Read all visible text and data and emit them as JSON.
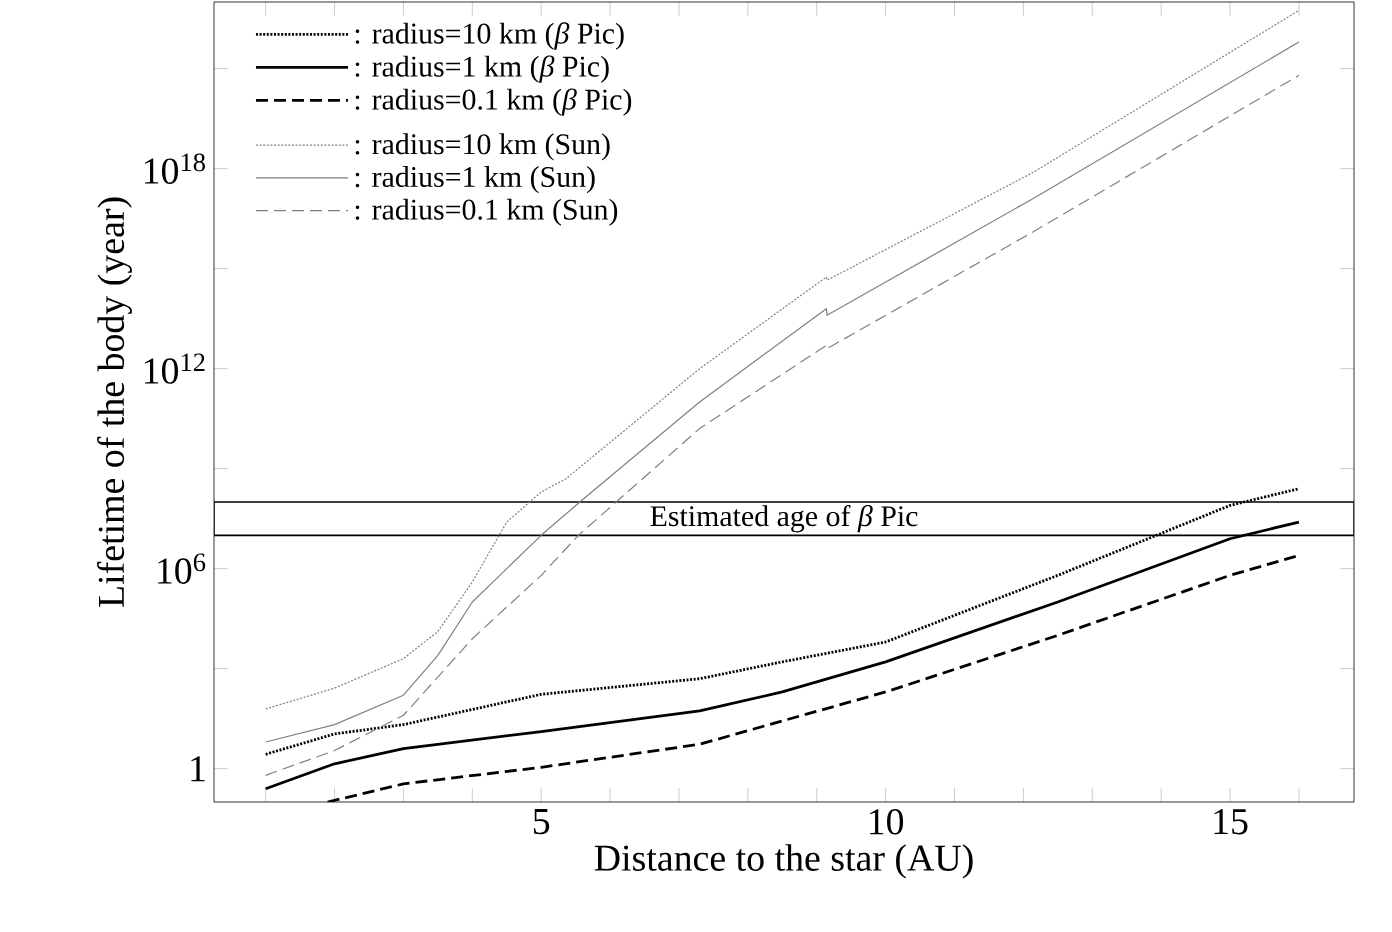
{
  "chart_data": {
    "type": "line",
    "xlabel": "Distance to the star (AU)",
    "ylabel": "Lifetime of the body (year)",
    "log": "y",
    "grid": false,
    "legend": "top left",
    "xlim": [
      0.25,
      16.8
    ],
    "ylim": [
      0.1,
      1e+23
    ],
    "xticks": [
      {
        "value": 1,
        "label": null
      },
      {
        "value": 2,
        "label": null
      },
      {
        "value": 3,
        "label": null
      },
      {
        "value": 4,
        "label": null
      },
      5,
      {
        "value": 6,
        "label": null
      },
      {
        "value": 7,
        "label": null
      },
      {
        "value": 8,
        "label": null
      },
      {
        "value": 9,
        "label": null
      },
      10,
      {
        "value": 11,
        "label": null
      },
      {
        "value": 12,
        "label": null
      },
      {
        "value": 13,
        "label": null
      },
      {
        "value": 14,
        "label": null
      },
      15,
      {
        "value": 16,
        "label": null
      }
    ],
    "yticks": [
      1,
      {
        "value": 1000.0,
        "label": null
      },
      {
        "value": 1000000.0,
        "label": "10$^{6}$"
      },
      {
        "value": 1000000000.0,
        "label": null
      },
      {
        "value": 1000000000000.0,
        "label": "10$^{12}$"
      },
      {
        "value": 1000000000000000.0,
        "label": null
      },
      {
        "value": 1e+18,
        "label": "10$^{18}$"
      },
      {
        "value": 1e+21,
        "label": null
      }
    ],
    "bands": [
      {
        "axis": "y",
        "from": 10000000.0,
        "to": 100000000.0,
        "label": "Estimated age of *β* Pic"
      }
    ],
    "series": [
      {
        "name": ": radius=10 km (*β* Pic)",
        "color": "#000000",
        "line_style": "dotted",
        "x": [
          1,
          2,
          3,
          5,
          7.3,
          8.5,
          10,
          12.5,
          15,
          16
        ],
        "values": [
          2.7,
          11,
          21,
          170,
          500,
          1600,
          6300,
          630000,
          79000000,
          250000000
        ]
      },
      {
        "name": ": radius=1 km (*β* Pic)",
        "color": "#000000",
        "line_style": "solid",
        "x": [
          1,
          2,
          3,
          5,
          7.3,
          8.5,
          10,
          12.5,
          15,
          16
        ],
        "values": [
          0.25,
          1.4,
          4,
          13,
          54,
          200,
          1600,
          100000,
          7900000,
          25000000
        ]
      },
      {
        "name": ": radius=0.1 km (*β* Pic)",
        "color": "#000000",
        "line_style": "dashed",
        "x": [
          1.9,
          3,
          5,
          7.3,
          8.5,
          10,
          12.5,
          15,
          16
        ],
        "values": [
          0.1,
          0.35,
          1.1,
          5.4,
          27,
          200,
          10000,
          630000,
          2500000
        ]
      },
      {
        "name": ": radius=10 km (Sun)",
        "color": "#808080",
        "line_style": "dotted",
        "x": [
          1,
          2,
          3,
          3.5,
          4,
          4.5,
          5,
          5.36,
          7.3,
          9.14,
          9.15,
          12.15,
          16
        ],
        "values": [
          62,
          260,
          2000,
          13000,
          400000,
          25000000,
          200000000,
          500000000,
          1000000000000.0,
          560000000000000.0,
          450000000000000.0,
          7.9e+17,
          5.6e+22
        ]
      },
      {
        "name": ": radius=1 km (Sun)",
        "color": "#808080",
        "line_style": "solid",
        "x": [
          1,
          2,
          3,
          3.5,
          4,
          5,
          5.56,
          7.3,
          9.14,
          9.15,
          12.15,
          16
        ],
        "values": [
          6.3,
          21,
          160,
          2500,
          100000,
          10000000,
          100000000,
          100000000000.0,
          63000000000000.0,
          40000000000000.0,
          1.3e+17,
          6.3e+21
        ]
      },
      {
        "name": ": radius=0.1 km (Sun)",
        "color": "#808080",
        "line_style": "dashed",
        "x": [
          1,
          2,
          3,
          4,
          5,
          5.54,
          7.3,
          9.14,
          9.15,
          12.15,
          16
        ],
        "values": [
          0.63,
          3.5,
          40,
          7900,
          630000,
          10000000,
          16000000000.0,
          5000000000000.0,
          4000000000000.0,
          1.3e+16,
          6.3e+20
        ]
      }
    ]
  }
}
